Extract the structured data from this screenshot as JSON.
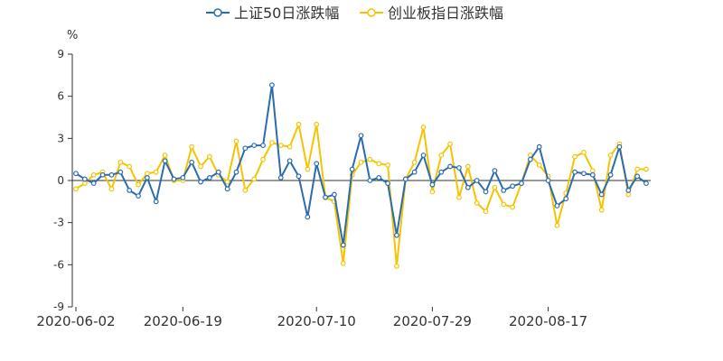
{
  "colors": {
    "series1": "#2b6cb0",
    "series2": "#f5c400",
    "axis": "#333333",
    "zero_line": "#333333"
  },
  "chart_data": {
    "type": "line",
    "title": "",
    "unit": "%",
    "xlabel": "",
    "ylabel": "",
    "ylim": [
      -9,
      9
    ],
    "yticks": [
      "9",
      "6",
      "3",
      "0",
      "-3",
      "-6",
      "-9"
    ],
    "ytick_values": [
      9,
      6,
      3,
      0,
      -3,
      -6,
      -9
    ],
    "x_tick_labels": [
      "2020-06-02",
      "2020-06-19",
      "2020-07-10",
      "2020-07-29",
      "2020-08-17"
    ],
    "x_tick_indices": [
      0,
      12,
      27,
      40,
      53
    ],
    "n_points": 65,
    "grid": false,
    "legend_position": "top-center",
    "series": [
      {
        "name": "上证50日涨跌幅",
        "color": "#2b6cb0",
        "values": [
          0.5,
          0.1,
          -0.2,
          0.4,
          0.4,
          0.6,
          -0.7,
          -1.1,
          0.2,
          -1.5,
          1.4,
          0.1,
          0.2,
          1.3,
          -0.1,
          0.2,
          0.6,
          -0.6,
          0.6,
          2.3,
          2.5,
          2.5,
          6.8,
          0.2,
          1.4,
          0.3,
          -2.6,
          1.2,
          -1.2,
          -1.0,
          -4.6,
          0.8,
          3.2,
          0.0,
          0.2,
          -0.2,
          -3.9,
          0.1,
          0.6,
          1.8,
          -0.3,
          0.6,
          1.0,
          0.9,
          -0.5,
          0.0,
          -0.8,
          0.7,
          -0.7,
          -0.4,
          -0.2,
          1.5,
          2.4,
          0.0,
          -1.8,
          -1.3,
          0.6,
          0.5,
          0.4,
          -1.0,
          0.4,
          2.4,
          -0.7,
          0.3,
          -0.2
        ]
      },
      {
        "name": "创业板指日涨跌幅",
        "color": "#f5c400",
        "values": [
          -0.6,
          -0.2,
          0.4,
          0.6,
          -0.6,
          1.3,
          1.0,
          -0.3,
          0.5,
          0.6,
          1.8,
          0.0,
          0.0,
          2.4,
          1.0,
          1.7,
          0.4,
          -0.1,
          2.8,
          -0.7,
          0.1,
          1.5,
          2.7,
          2.5,
          2.4,
          4.0,
          0.8,
          4.0,
          -1.2,
          -1.5,
          -5.9,
          0.4,
          1.3,
          1.5,
          1.2,
          1.1,
          -6.1,
          0.1,
          1.3,
          3.8,
          -0.8,
          1.8,
          2.6,
          -1.2,
          1.0,
          -1.6,
          -2.2,
          -0.5,
          -1.7,
          -1.9,
          -0.2,
          1.8,
          1.1,
          0.3,
          -3.2,
          -0.9,
          1.7,
          2.0,
          0.7,
          -2.1,
          1.8,
          2.6,
          -1.0,
          0.8,
          0.8
        ]
      }
    ]
  }
}
